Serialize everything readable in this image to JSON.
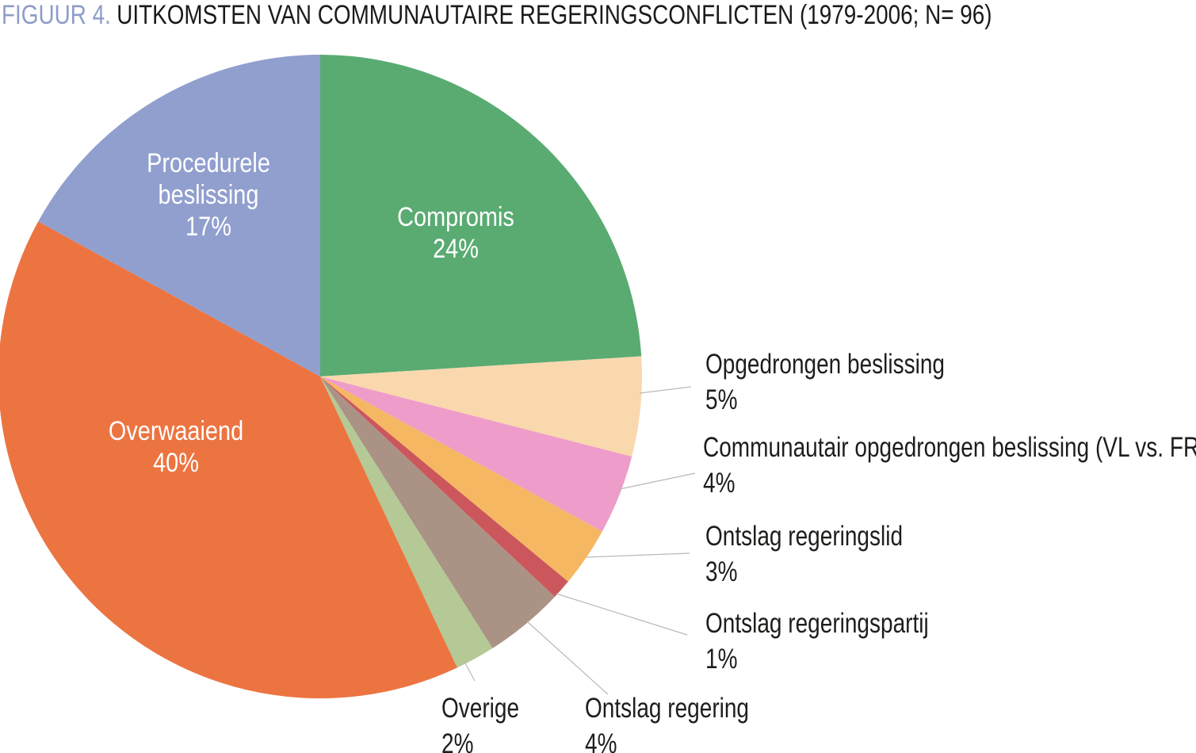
{
  "header": {
    "prefix": "FIGUUR 4.",
    "text": "UITKOMSTEN VAN COMMUNAUTAIRE REGERINGSCONFLICTEN (1979-2006; N= 96)"
  },
  "chart_data": {
    "type": "pie",
    "title": "FIGUUR 4. UITKOMSTEN VAN COMMUNAUTAIRE REGERINGSCONFLICTEN (1979-2006; N= 96)",
    "n": 96,
    "period": "1979-2006",
    "unit": "percent",
    "start_angle_deg_from_top": 0,
    "direction": "clockwise",
    "legend": "none",
    "leader_line_color": "#b9b9b9",
    "inside_label_color": "#ffffff",
    "outside_label_color": "#1d1d1b",
    "slices": [
      {
        "label": "Compromis",
        "value": 24,
        "pct_label": "24%",
        "color": "#5aab72",
        "label_placement": "inside"
      },
      {
        "label": "Opgedrongen beslissing",
        "value": 5,
        "pct_label": "5%",
        "color": "#fad8ae",
        "label_placement": "outside-right"
      },
      {
        "label": "Communautair opgedrongen beslissing (VL vs. FR)",
        "value": 4,
        "pct_label": "4%",
        "color": "#ee9cc9",
        "label_placement": "outside-right"
      },
      {
        "label": "Ontslag regeringslid",
        "value": 3,
        "pct_label": "3%",
        "color": "#f6b763",
        "label_placement": "outside-right"
      },
      {
        "label": "Ontslag regeringspartij",
        "value": 1,
        "pct_label": "1%",
        "color": "#cb575c",
        "label_placement": "outside-right"
      },
      {
        "label": "Ontslag regering",
        "value": 4,
        "pct_label": "4%",
        "color": "#aa9284",
        "label_placement": "outside-bottom"
      },
      {
        "label": "Overige",
        "value": 2,
        "pct_label": "2%",
        "color": "#b4c996",
        "label_placement": "outside-bottom"
      },
      {
        "label": "Overwaaiend",
        "value": 40,
        "pct_label": "40%",
        "color": "#ec7441",
        "label_placement": "inside"
      },
      {
        "label": "Procedurele beslissing",
        "value": 17,
        "pct_label": "17%",
        "color": "#919fce",
        "label_placement": "inside"
      }
    ]
  }
}
